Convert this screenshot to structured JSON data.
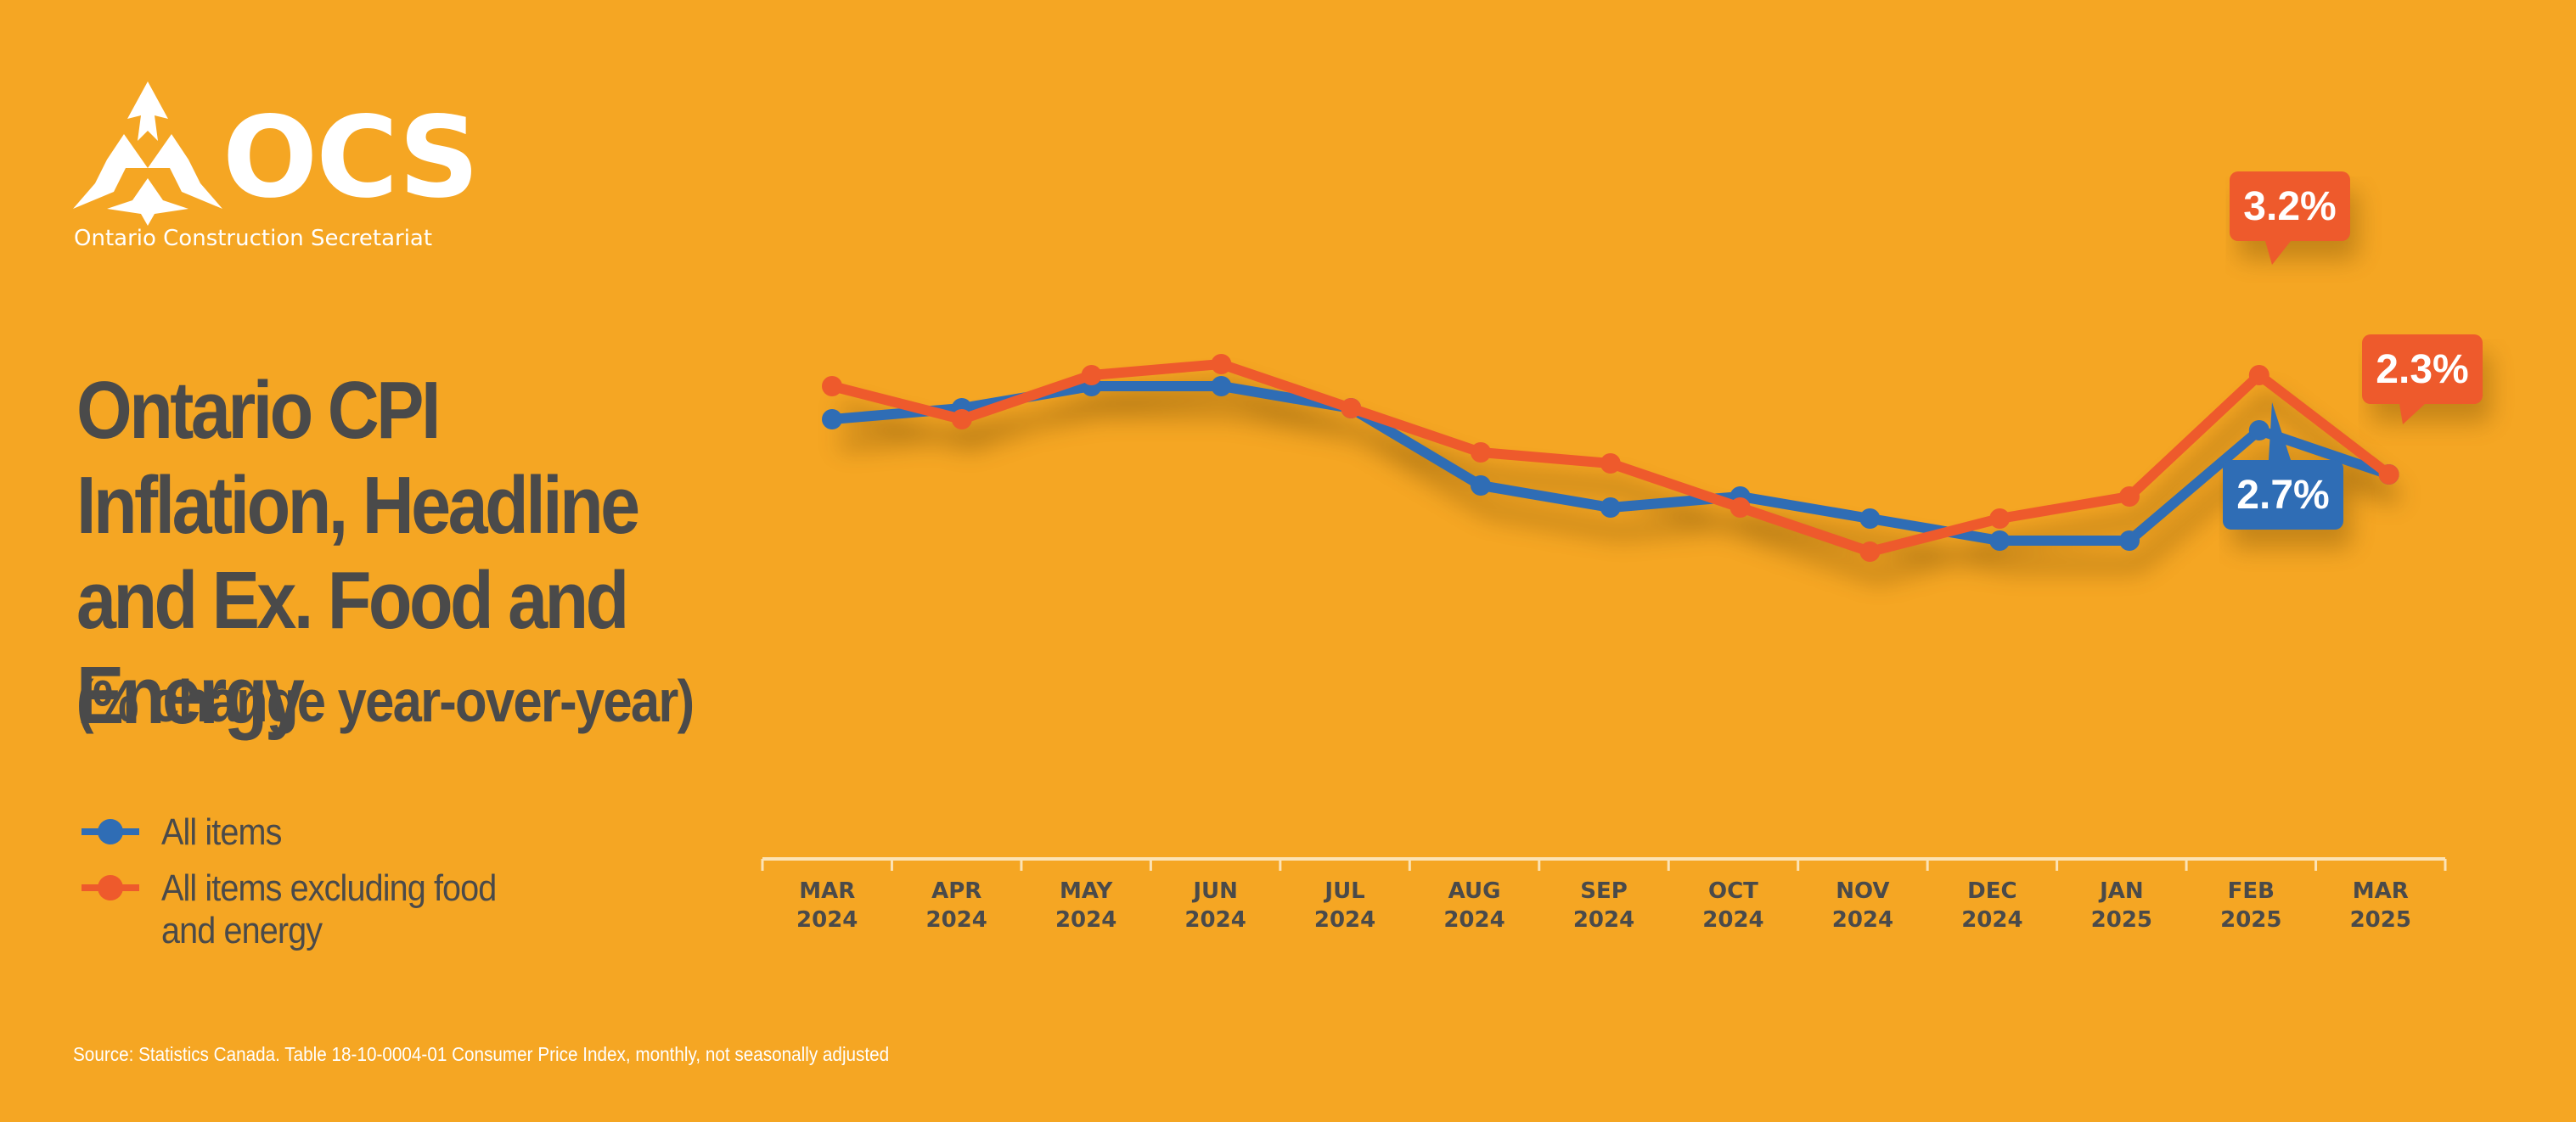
{
  "logo": {
    "text": "OCS",
    "subtitle": "Ontario Construction Secretariat"
  },
  "title": "Ontario CPI Inflation, Headline and Ex. Food and Energy",
  "subtitle": "(% change year-over-year)",
  "legend": [
    {
      "label": "All items",
      "color": "#2F6DB5"
    },
    {
      "label": "All items excluding food and energy",
      "color": "#EE5A2C"
    }
  ],
  "source": "Source: Statistics Canada. Table 18-10-0004-01  Consumer Price Index, monthly, not seasonally adjusted",
  "colors": {
    "background": "#F5A623",
    "text": "#4A4A4A",
    "blue": "#2F6DB5",
    "red": "#EE5A2C",
    "axis": "#FCE3B5"
  },
  "chart_data": {
    "type": "line",
    "x": [
      "MAR 2024",
      "APR 2024",
      "MAY 2024",
      "JUN 2024",
      "JUL 2024",
      "AUG 2024",
      "SEP 2024",
      "OCT 2024",
      "NOV 2024",
      "DEC 2024",
      "JAN 2025",
      "FEB 2025",
      "MAR 2025"
    ],
    "x_tick_labels": [
      [
        "MAR",
        "2024"
      ],
      [
        "APR",
        "2024"
      ],
      [
        "MAY",
        "2024"
      ],
      [
        "JUN",
        "2024"
      ],
      [
        "JUL",
        "2024"
      ],
      [
        "AUG",
        "2024"
      ],
      [
        "SEP",
        "2024"
      ],
      [
        "OCT",
        "2024"
      ],
      [
        "NOV",
        "2024"
      ],
      [
        "DEC",
        "2024"
      ],
      [
        "JAN",
        "2025"
      ],
      [
        "FEB",
        "2025"
      ],
      [
        "MAR",
        "2025"
      ]
    ],
    "series": [
      {
        "name": "All items",
        "color": "#2F6DB5",
        "values": [
          2.8,
          2.9,
          3.1,
          3.1,
          2.9,
          2.2,
          2.0,
          2.1,
          1.9,
          1.7,
          1.7,
          2.7,
          2.3
        ]
      },
      {
        "name": "All items excluding food and energy",
        "color": "#EE5A2C",
        "values": [
          3.1,
          2.8,
          3.2,
          3.3,
          2.9,
          2.5,
          2.4,
          2.0,
          1.6,
          1.9,
          2.1,
          3.2,
          2.3
        ]
      }
    ],
    "annotations": [
      {
        "series": 1,
        "index": 11,
        "text": "3.2%"
      },
      {
        "series": 1,
        "index": 12,
        "text": "2.3%"
      },
      {
        "series": 0,
        "index": 11,
        "text": "2.7%"
      }
    ],
    "grid": false,
    "legend_position": "left"
  }
}
